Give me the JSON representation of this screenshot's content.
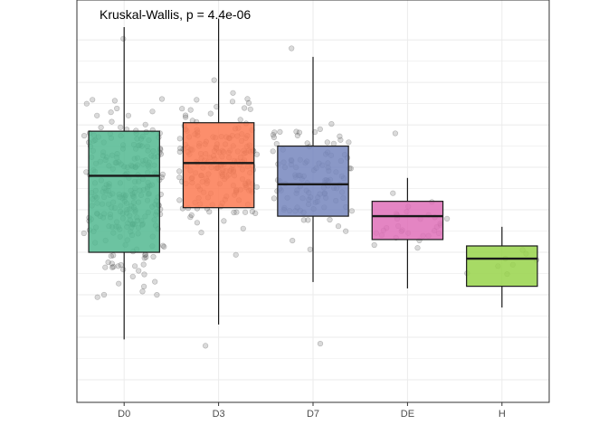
{
  "chart_data": {
    "type": "boxplot",
    "title": "",
    "xlabel": "",
    "ylabel": "",
    "annotation": "Kruskal-Wallis, p = 4.4e-06",
    "categories": [
      "D0",
      "D3",
      "D7",
      "DE",
      "H"
    ],
    "colors": [
      "#52b991",
      "#fc7a52",
      "#7686bd",
      "#df70b8",
      "#98d44a"
    ],
    "ylim": [
      0,
      83
    ],
    "grid": true,
    "legend": "none",
    "y_axis_tick_labels": "none",
    "boxes": [
      {
        "category": "D0",
        "min": 9.5,
        "q1": 30,
        "median": 48,
        "q3": 58.5,
        "max": 83
      },
      {
        "category": "D3",
        "min": 13,
        "q1": 40.5,
        "median": 51,
        "q3": 60.5,
        "max": 85
      },
      {
        "category": "D7",
        "min": 23,
        "q1": 38.5,
        "median": 46,
        "q3": 55,
        "max": 76
      },
      {
        "category": "DE",
        "min": 21.5,
        "q1": 33,
        "median": 38.5,
        "q3": 42,
        "max": 47.5
      },
      {
        "category": "H",
        "min": 17,
        "q1": 22,
        "median": 28.5,
        "q3": 31.5,
        "max": 36
      }
    ],
    "points_per_group": [
      260,
      190,
      110,
      30,
      8
    ],
    "outliers": [
      {
        "category": "D3",
        "value": 8
      },
      {
        "category": "D7",
        "value": 8.5
      },
      {
        "category": "D7",
        "value": 78
      },
      {
        "category": "DE",
        "value": 58
      }
    ]
  }
}
